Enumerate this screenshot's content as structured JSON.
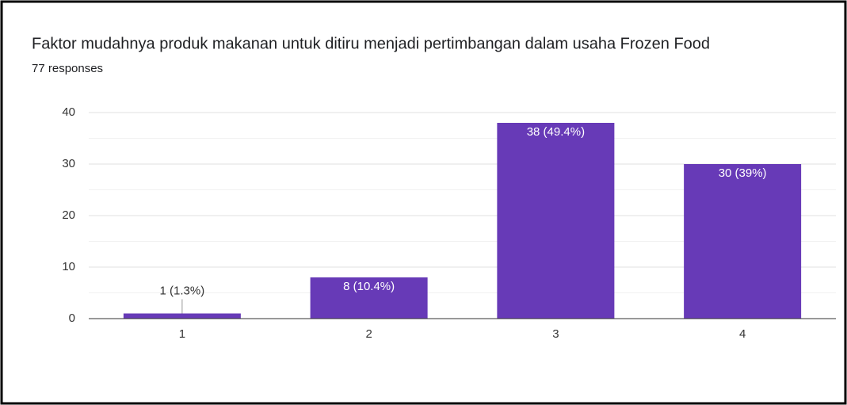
{
  "chart_data": {
    "type": "bar",
    "title": "Faktor mudahnya produk makanan untuk ditiru menjadi pertimbangan dalam usaha Frozen Food",
    "subtitle": "77 responses",
    "categories": [
      "1",
      "2",
      "3",
      "4"
    ],
    "values": [
      1,
      8,
      38,
      30
    ],
    "value_labels": [
      "1 (1.3%)",
      "8 (10.4%)",
      "38 (49.4%)",
      "30 (39%)"
    ],
    "color": "#673ab7",
    "ylim": [
      0,
      40
    ],
    "yticks": [
      0,
      10,
      20,
      30,
      40
    ],
    "grid": true
  }
}
